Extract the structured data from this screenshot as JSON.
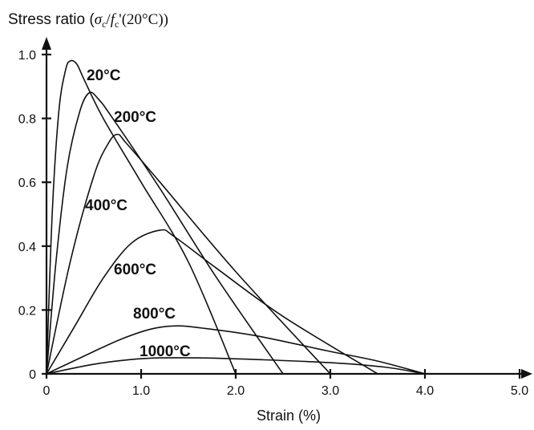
{
  "chart_data": {
    "type": "line",
    "ylabel_parts": {
      "prefix": "Stress ratio (",
      "sigma": "σ",
      "sub_c": "c",
      "slash": "/",
      "f": "f",
      "sub_c2": "c",
      "suffix": "'(20°C))"
    },
    "xlabel": "Strain (%)",
    "xlim": [
      0,
      5.0
    ],
    "ylim": [
      0,
      1.0
    ],
    "x_ticks": [
      "0",
      "1.0",
      "2.0",
      "3.0",
      "4.0",
      "5.0"
    ],
    "y_ticks": [
      "0",
      "0.2",
      "0.4",
      "0.6",
      "0.8",
      "1.0"
    ],
    "grid": false,
    "series": [
      {
        "name": "20°C",
        "points": [
          [
            0,
            0
          ],
          [
            0.06,
            0.5
          ],
          [
            0.13,
            0.82
          ],
          [
            0.2,
            0.95
          ],
          [
            0.25,
            0.98
          ],
          [
            0.32,
            0.97
          ],
          [
            0.4,
            0.92
          ],
          [
            0.6,
            0.8
          ],
          [
            1.0,
            0.6
          ],
          [
            1.5,
            0.35
          ],
          [
            2.0,
            0.0
          ]
        ]
      },
      {
        "name": "200°C",
        "points": [
          [
            0,
            0
          ],
          [
            0.1,
            0.35
          ],
          [
            0.22,
            0.65
          ],
          [
            0.35,
            0.82
          ],
          [
            0.45,
            0.88
          ],
          [
            0.55,
            0.86
          ],
          [
            0.7,
            0.8
          ],
          [
            1.2,
            0.58
          ],
          [
            1.8,
            0.3
          ],
          [
            2.5,
            0.0
          ]
        ]
      },
      {
        "name": "400°C",
        "points": [
          [
            0,
            0
          ],
          [
            0.25,
            0.35
          ],
          [
            0.5,
            0.62
          ],
          [
            0.65,
            0.72
          ],
          [
            0.75,
            0.75
          ],
          [
            0.85,
            0.72
          ],
          [
            1.2,
            0.6
          ],
          [
            2.0,
            0.32
          ],
          [
            3.0,
            0.0
          ]
        ]
      },
      {
        "name": "600°C",
        "points": [
          [
            0,
            0
          ],
          [
            0.3,
            0.15
          ],
          [
            0.6,
            0.3
          ],
          [
            0.9,
            0.41
          ],
          [
            1.2,
            0.45
          ],
          [
            1.35,
            0.43
          ],
          [
            1.8,
            0.33
          ],
          [
            2.5,
            0.18
          ],
          [
            3.5,
            0.0
          ]
        ]
      },
      {
        "name": "800°C",
        "points": [
          [
            0,
            0
          ],
          [
            0.5,
            0.07
          ],
          [
            0.8,
            0.11
          ],
          [
            1.1,
            0.14
          ],
          [
            1.35,
            0.15
          ],
          [
            1.6,
            0.145
          ],
          [
            2.2,
            0.12
          ],
          [
            3.0,
            0.07
          ],
          [
            3.5,
            0.04
          ],
          [
            4.0,
            0.0
          ]
        ]
      },
      {
        "name": "1000°C",
        "points": [
          [
            0,
            0
          ],
          [
            0.5,
            0.03
          ],
          [
            0.9,
            0.045
          ],
          [
            1.2,
            0.05
          ],
          [
            1.6,
            0.05
          ],
          [
            2.2,
            0.045
          ],
          [
            3.0,
            0.035
          ],
          [
            3.6,
            0.02
          ],
          [
            4.0,
            0.0
          ]
        ]
      }
    ]
  }
}
